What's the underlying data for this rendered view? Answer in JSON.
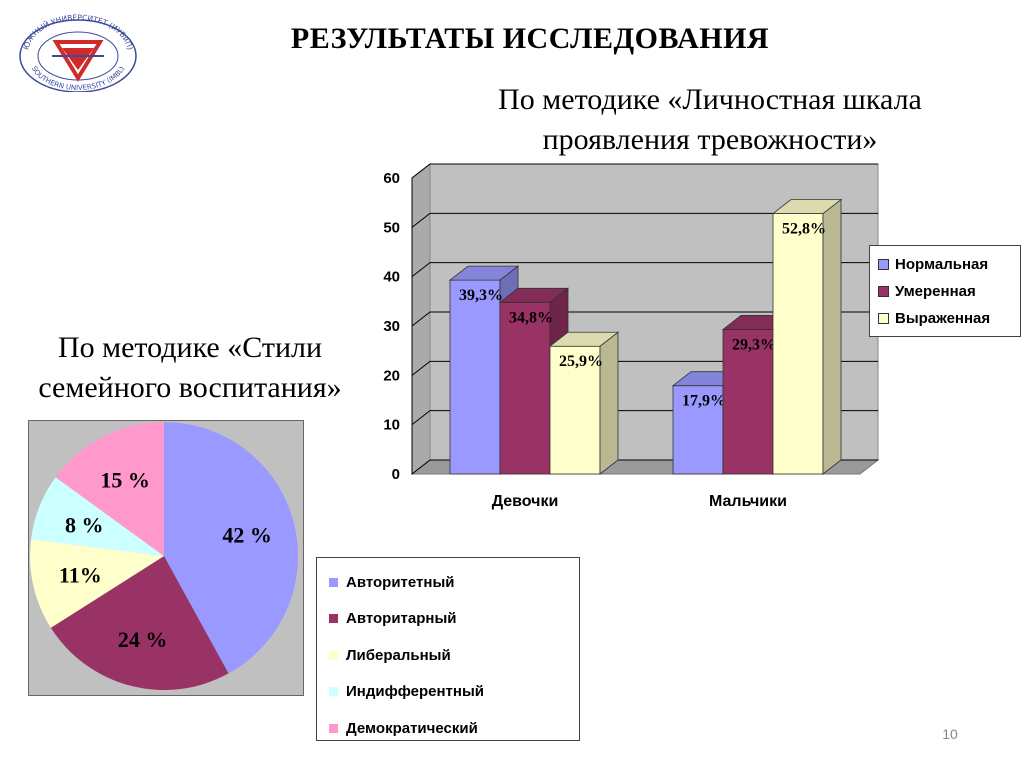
{
  "header": {
    "title": "РЕЗУЛЬТАТЫ ИССЛЕДОВАНИЯ",
    "logo": {
      "icon": "university-seal",
      "text_top": "ЮЖНЫЙ УНИВЕРСИТЕТ (ИУБиП)",
      "text_bottom": "SOUTHERN UNIVERSITY (IMBL)"
    }
  },
  "bar_section": {
    "subtitle_line1": "По методике «Личностная шкала",
    "subtitle_line2": "проявления тревожности»"
  },
  "pie_section": {
    "subtitle_line1": "По методике «Стили",
    "subtitle_line2": "семейного воспитания»"
  },
  "page_number": "10",
  "chart_data": [
    {
      "type": "bar",
      "style": "3d-clustered-column",
      "categories": [
        "Девочки",
        "Мальчики"
      ],
      "series": [
        {
          "name": "Нормальная",
          "values": [
            39.3,
            17.9
          ],
          "labels": [
            "39,3%",
            "17,9%"
          ],
          "color": "#9999ff"
        },
        {
          "name": "Умеренная",
          "values": [
            34.8,
            29.3
          ],
          "labels": [
            "34,8%",
            "29,3%"
          ],
          "color": "#993366"
        },
        {
          "name": "Выраженная",
          "values": [
            25.9,
            52.8
          ],
          "labels": [
            "25,9%",
            "52,8%"
          ],
          "color": "#ffffcc"
        }
      ],
      "ylim": [
        0,
        60
      ],
      "yticks": [
        "0",
        "10",
        "20",
        "30",
        "40",
        "50",
        "60"
      ],
      "grid": true,
      "legend": "right"
    },
    {
      "type": "pie",
      "slices": [
        {
          "name": "Авторитетный",
          "value": 42,
          "label": "42 %",
          "color": "#9999ff"
        },
        {
          "name": "Авторитарный",
          "value": 24,
          "label": "24 %",
          "color": "#993366"
        },
        {
          "name": "Либеральный",
          "value": 11,
          "label": "11%",
          "color": "#ffffcc"
        },
        {
          "name": "Индифферентный",
          "value": 8,
          "label": "8 %",
          "color": "#ccffff"
        },
        {
          "name": "Демократический",
          "value": 15,
          "label": "15 %",
          "color": "#ff99cc"
        }
      ],
      "legend": "right"
    }
  ]
}
